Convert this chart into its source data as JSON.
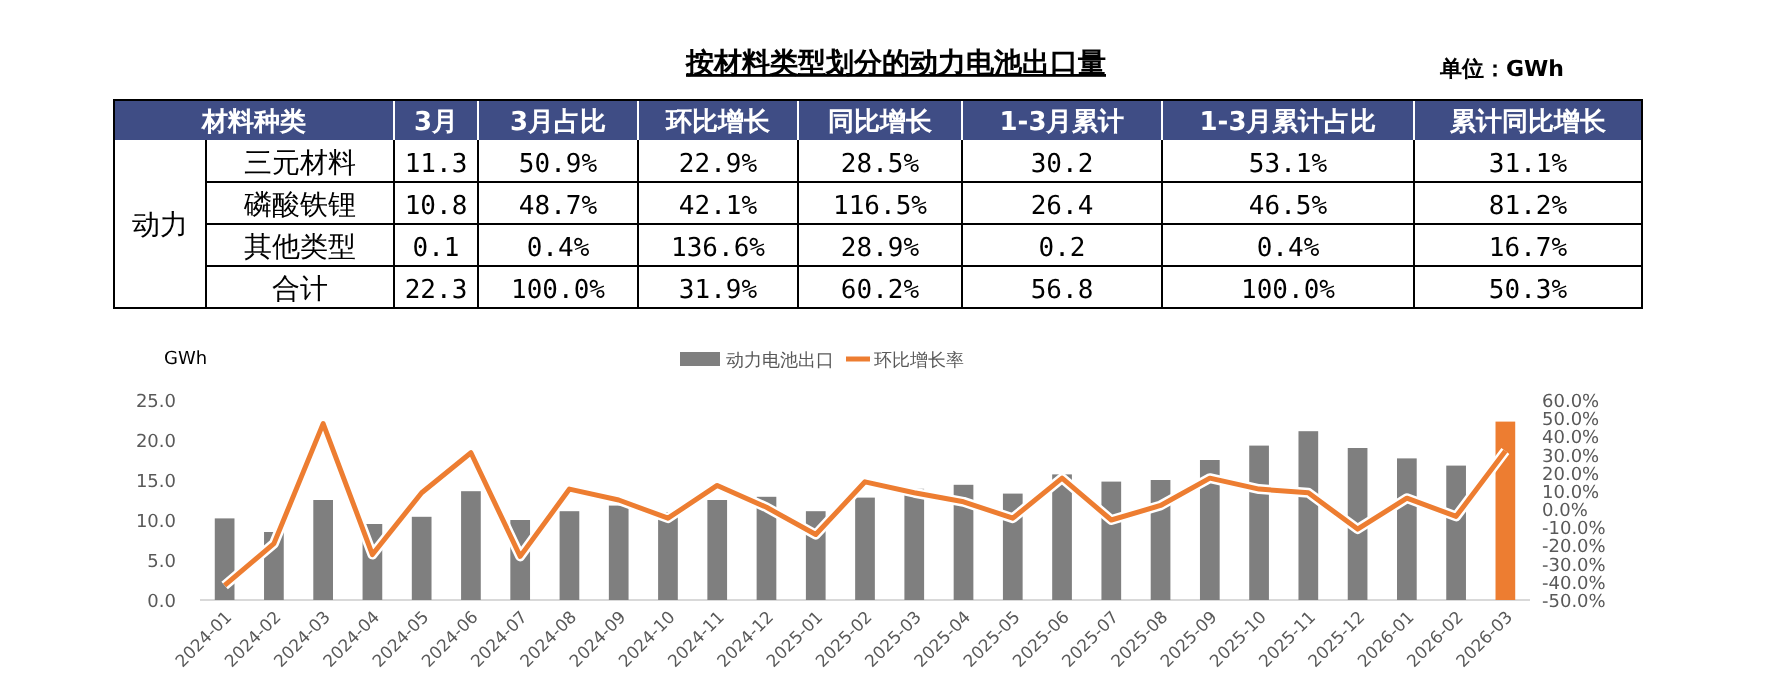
{
  "chart_data": [
    {
      "type": "other",
      "title": "按材料类型划分的动力电池出口量",
      "annotations": [
        "单位：GWh"
      ],
      "ylabel": "动力",
      "categories": [
        "材料种类",
        "3月",
        "3月占比",
        "环比增长",
        "同比增长",
        "1-3月累计",
        "1-3月累计占比",
        "累计同比增长"
      ],
      "y_categories": [
        "三元材料",
        "磷酸铁锂",
        "其他类型",
        "合计"
      ],
      "cell_labels": [
        [
          "11.3",
          "50.9%",
          "22.9%",
          "28.5%",
          "30.2",
          "53.1%",
          "31.1%"
        ],
        [
          "10.8",
          "48.7%",
          "42.1%",
          "116.5%",
          "26.4",
          "46.5%",
          "81.2%"
        ],
        [
          "0.1",
          "0.4%",
          "136.6%",
          "28.9%",
          "0.2",
          "0.4%",
          "16.7%"
        ],
        [
          "22.3",
          "100.0%",
          "31.9%",
          "60.2%",
          "56.8",
          "100.0%",
          "50.3%"
        ]
      ]
    },
    {
      "type": "bar",
      "ylabel": "GWh",
      "legend": "top right",
      "grid": false,
      "categories": [
        "2024-01",
        "2024-02",
        "2024-03",
        "2024-04",
        "2024-05",
        "2024-06",
        "2024-07",
        "2024-08",
        "2024-09",
        "2024-10",
        "2024-11",
        "2024-12",
        "2025-01",
        "2025-02",
        "2025-03",
        "2025-04",
        "2025-05",
        "2025-06",
        "2025-07",
        "2025-08",
        "2025-09",
        "2025-10",
        "2025-11",
        "2025-12",
        "2026-01",
        "2026-02",
        "2026-03"
      ],
      "ylim": [
        0,
        25
      ],
      "yticks": [
        {
          "value": 0,
          "label": "0.0"
        },
        {
          "value": 5,
          "label": "5.0"
        },
        {
          "value": 10,
          "label": "10.0"
        },
        {
          "value": 15,
          "label": "15.0"
        },
        {
          "value": 20,
          "label": "20.0"
        },
        {
          "value": 25,
          "label": "25.0"
        }
      ],
      "y2lim": [
        -50,
        60
      ],
      "y2ticks": [
        {
          "value": 60,
          "label": "60.0%"
        },
        {
          "value": 50,
          "label": "50.0%"
        },
        {
          "value": 40,
          "label": "40.0%"
        },
        {
          "value": 30,
          "label": "30.0%"
        },
        {
          "value": 20,
          "label": "20.0%"
        },
        {
          "value": 10,
          "label": "10.0%"
        },
        {
          "value": 0,
          "label": "0.0%"
        },
        {
          "value": -10,
          "label": "-10.0%"
        },
        {
          "value": -20,
          "label": "-20.0%"
        },
        {
          "value": -30,
          "label": "-30.0%"
        },
        {
          "value": -40,
          "label": "-40.0%"
        },
        {
          "value": -50,
          "label": "-50.0%"
        }
      ],
      "series": [
        {
          "name": "动力电池出口",
          "type": "bar",
          "color": "#7f7f7f",
          "colors": [
            "#7f7f7f",
            "#7f7f7f",
            "#7f7f7f",
            "#7f7f7f",
            "#7f7f7f",
            "#7f7f7f",
            "#7f7f7f",
            "#7f7f7f",
            "#7f7f7f",
            "#7f7f7f",
            "#7f7f7f",
            "#7f7f7f",
            "#7f7f7f",
            "#7f7f7f",
            "#7f7f7f",
            "#7f7f7f",
            "#7f7f7f",
            "#7f7f7f",
            "#7f7f7f",
            "#7f7f7f",
            "#7f7f7f",
            "#7f7f7f",
            "#7f7f7f",
            "#7f7f7f",
            "#7f7f7f",
            "#7f7f7f",
            "#ed7d31"
          ],
          "values": [
            10.2,
            8.5,
            12.5,
            9.5,
            10.4,
            13.6,
            10.0,
            11.1,
            11.8,
            11.0,
            12.5,
            12.9,
            11.1,
            12.8,
            13.9,
            14.4,
            13.3,
            15.7,
            14.8,
            15.0,
            17.5,
            19.3,
            21.1,
            19.0,
            17.7,
            16.8,
            22.3
          ]
        },
        {
          "name": "环比增长率",
          "type": "line",
          "axis": "y2",
          "color": "#ed7d31",
          "marker": "none",
          "values": [
            -42,
            -19,
            47,
            -25,
            9,
            31,
            -26,
            11,
            5,
            -5,
            13,
            1,
            -14,
            15,
            9,
            4,
            -5,
            17,
            -6,
            2,
            17,
            11,
            9,
            -11,
            6,
            -4,
            31.9
          ]
        }
      ]
    }
  ]
}
